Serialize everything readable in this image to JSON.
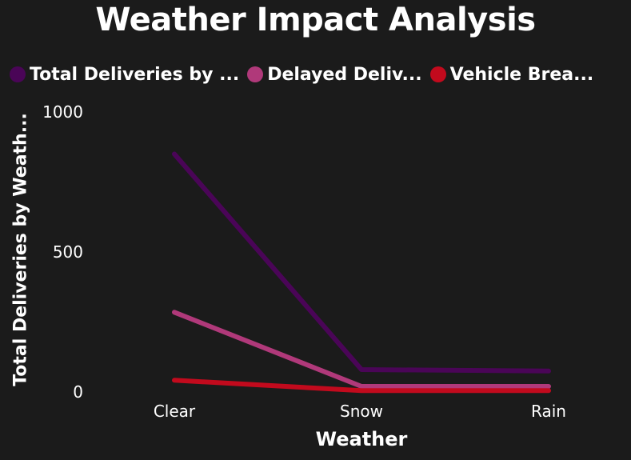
{
  "chart_data": {
    "type": "line",
    "title": "Weather Impact Analysis",
    "xlabel": "Weather",
    "ylabel": "Total Deliveries by Weath...",
    "categories": [
      "Clear",
      "Snow",
      "Rain"
    ],
    "ylim": [
      0,
      1000
    ],
    "yticks": [
      "0",
      "500",
      "1000"
    ],
    "grid": false,
    "legend_position": "top-left",
    "series": [
      {
        "name": "Total Deliveries by ...",
        "color": "#4a0557",
        "values": [
          850,
          80,
          75
        ]
      },
      {
        "name": "Delayed Deliv...",
        "color": "#b0397a",
        "values": [
          285,
          20,
          20
        ]
      },
      {
        "name": "Vehicle Brea...",
        "color": "#c20a1d",
        "values": [
          42,
          5,
          5
        ]
      }
    ]
  }
}
